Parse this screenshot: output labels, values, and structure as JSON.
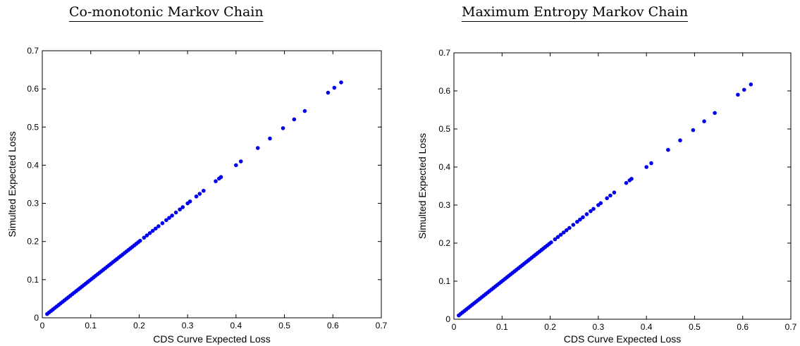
{
  "chart_data": [
    {
      "type": "scatter",
      "title": "Co-monotonic Markov Chain",
      "xlabel": "CDS Curve Expected Loss",
      "ylabel": "Simulted Expected Loss",
      "xlim": [
        0,
        0.7
      ],
      "ylim": [
        0,
        0.7
      ],
      "xticks": [
        "0",
        "0.1",
        "0.2",
        "0.3",
        "0.4",
        "0.5",
        "0.6",
        "0.7"
      ],
      "yticks": [
        "0",
        "0.1",
        "0.2",
        "0.3",
        "0.4",
        "0.5",
        "0.6",
        "0.7"
      ],
      "grid": false,
      "marker_color": "#0000ee",
      "series": [
        {
          "x": [
            0.01,
            0.014,
            0.018,
            0.022,
            0.026,
            0.03,
            0.034,
            0.038,
            0.042,
            0.046,
            0.05,
            0.054,
            0.058,
            0.062,
            0.066,
            0.07,
            0.074,
            0.078,
            0.082,
            0.086,
            0.09,
            0.094,
            0.098,
            0.102,
            0.106,
            0.11,
            0.114,
            0.118,
            0.122,
            0.126,
            0.13,
            0.134,
            0.138,
            0.142,
            0.146,
            0.15,
            0.154,
            0.158,
            0.162,
            0.166,
            0.17,
            0.174,
            0.178,
            0.182,
            0.186,
            0.19,
            0.194,
            0.198,
            0.202,
            0.21,
            0.216,
            0.222,
            0.228,
            0.234,
            0.24,
            0.248,
            0.256,
            0.262,
            0.268,
            0.276,
            0.284,
            0.29,
            0.3,
            0.305,
            0.318,
            0.325,
            0.333,
            0.358,
            0.365,
            0.369,
            0.4,
            0.41,
            0.445,
            0.47,
            0.497,
            0.52,
            0.542,
            0.59,
            0.603,
            0.617
          ],
          "y": [
            0.01,
            0.014,
            0.018,
            0.022,
            0.026,
            0.03,
            0.034,
            0.038,
            0.042,
            0.046,
            0.05,
            0.054,
            0.058,
            0.062,
            0.066,
            0.07,
            0.074,
            0.078,
            0.082,
            0.086,
            0.09,
            0.094,
            0.098,
            0.102,
            0.106,
            0.11,
            0.114,
            0.118,
            0.122,
            0.126,
            0.13,
            0.134,
            0.138,
            0.142,
            0.146,
            0.15,
            0.154,
            0.158,
            0.162,
            0.166,
            0.17,
            0.174,
            0.178,
            0.182,
            0.186,
            0.19,
            0.194,
            0.198,
            0.202,
            0.21,
            0.216,
            0.222,
            0.228,
            0.234,
            0.24,
            0.248,
            0.256,
            0.262,
            0.268,
            0.276,
            0.284,
            0.29,
            0.3,
            0.305,
            0.318,
            0.325,
            0.333,
            0.358,
            0.365,
            0.369,
            0.4,
            0.41,
            0.445,
            0.47,
            0.497,
            0.52,
            0.542,
            0.59,
            0.603,
            0.617
          ]
        }
      ]
    },
    {
      "type": "scatter",
      "title": "Maximum Entropy Markov Chain",
      "xlabel": "CDS Curve Expected Loss",
      "ylabel": "Simulted Expected Loss",
      "xlim": [
        0,
        0.7
      ],
      "ylim": [
        0,
        0.7
      ],
      "xticks": [
        "0",
        "0.1",
        "0.2",
        "0.3",
        "0.4",
        "0.5",
        "0.6",
        "0.7"
      ],
      "yticks": [
        "0",
        "0.1",
        "0.2",
        "0.3",
        "0.4",
        "0.5",
        "0.6",
        "0.7"
      ],
      "grid": false,
      "marker_color": "#0000ee",
      "series": [
        {
          "x": [
            0.01,
            0.014,
            0.018,
            0.022,
            0.026,
            0.03,
            0.034,
            0.038,
            0.042,
            0.046,
            0.05,
            0.054,
            0.058,
            0.062,
            0.066,
            0.07,
            0.074,
            0.078,
            0.082,
            0.086,
            0.09,
            0.094,
            0.098,
            0.102,
            0.106,
            0.11,
            0.114,
            0.118,
            0.122,
            0.126,
            0.13,
            0.134,
            0.138,
            0.142,
            0.146,
            0.15,
            0.154,
            0.158,
            0.162,
            0.166,
            0.17,
            0.174,
            0.178,
            0.182,
            0.186,
            0.19,
            0.194,
            0.198,
            0.202,
            0.21,
            0.216,
            0.222,
            0.228,
            0.234,
            0.24,
            0.248,
            0.256,
            0.262,
            0.268,
            0.276,
            0.284,
            0.29,
            0.3,
            0.305,
            0.318,
            0.325,
            0.333,
            0.358,
            0.365,
            0.369,
            0.4,
            0.41,
            0.445,
            0.47,
            0.497,
            0.52,
            0.542,
            0.59,
            0.603,
            0.617
          ],
          "y": [
            0.01,
            0.014,
            0.018,
            0.022,
            0.026,
            0.03,
            0.034,
            0.038,
            0.042,
            0.046,
            0.05,
            0.054,
            0.058,
            0.062,
            0.066,
            0.07,
            0.074,
            0.078,
            0.082,
            0.086,
            0.09,
            0.094,
            0.098,
            0.102,
            0.106,
            0.11,
            0.114,
            0.118,
            0.122,
            0.126,
            0.13,
            0.134,
            0.138,
            0.142,
            0.146,
            0.15,
            0.154,
            0.158,
            0.162,
            0.166,
            0.17,
            0.174,
            0.178,
            0.182,
            0.186,
            0.19,
            0.194,
            0.198,
            0.202,
            0.21,
            0.216,
            0.222,
            0.228,
            0.234,
            0.24,
            0.248,
            0.256,
            0.262,
            0.268,
            0.276,
            0.284,
            0.29,
            0.3,
            0.305,
            0.318,
            0.325,
            0.333,
            0.358,
            0.365,
            0.369,
            0.4,
            0.41,
            0.445,
            0.47,
            0.497,
            0.52,
            0.542,
            0.59,
            0.603,
            0.617
          ]
        }
      ]
    }
  ]
}
